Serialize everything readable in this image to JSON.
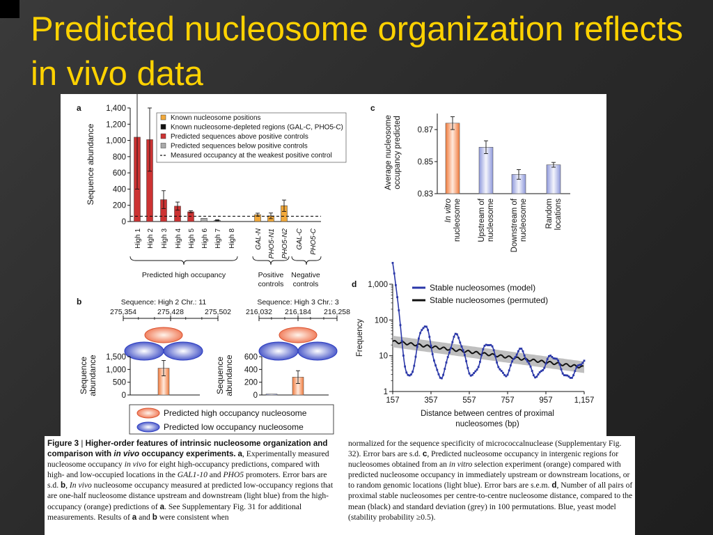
{
  "slide": {
    "title": "Predicted nucleosome organization reflects in vivo data"
  },
  "colors": {
    "title": "#ffd200",
    "red": "#cc3333",
    "orange": "#f2a93b",
    "grey": "#aaaaaa",
    "black": "#111111",
    "blue": "#2a37a8",
    "light_blue": "#c8cdee"
  },
  "panel_labels": {
    "a": "a",
    "b": "b",
    "c": "c",
    "d": "d"
  },
  "chart_data": [
    {
      "panel": "a",
      "type": "bar",
      "ylabel": "Sequence abundance",
      "ylim": [
        0,
        1400
      ],
      "yticks": [
        0,
        200,
        400,
        600,
        800,
        1000,
        1200,
        1400
      ],
      "ytick_labels": [
        "0",
        "200",
        "400",
        "600",
        "800",
        "1,000",
        "1,200",
        "1,400"
      ],
      "categories": [
        "High 1",
        "High 2",
        "High 3",
        "High 4",
        "High 5",
        "High 6",
        "High 7",
        "High 8",
        "GAL-N",
        "PHO5-N1",
        "PHO5-N2",
        "GAL-C",
        "PHO5-C"
      ],
      "values": [
        1040,
        1010,
        270,
        190,
        120,
        40,
        15,
        0,
        85,
        70,
        195,
        0,
        0
      ],
      "errors": [
        640,
        390,
        110,
        50,
        12,
        0,
        6,
        0,
        18,
        35,
        70,
        0,
        0
      ],
      "groups": [
        "red",
        "red",
        "red",
        "red",
        "red",
        "grey",
        "grey",
        "grey",
        "orange",
        "orange",
        "orange",
        "black",
        "black"
      ],
      "threshold": 65,
      "legend": [
        {
          "key": "orange",
          "label": "Known nucleosome positions"
        },
        {
          "key": "black",
          "label": "Known nucleosome-depleted regions (GAL-C, PHO5-C)"
        },
        {
          "key": "red",
          "label": "Predicted sequences above positive controls"
        },
        {
          "key": "grey",
          "label": "Predicted sequences below positive controls"
        },
        {
          "key": "dash",
          "label": "Measured occupancy at the weakest positive control"
        }
      ],
      "brackets": [
        {
          "label": "Predicted high occupancy"
        },
        {
          "label": "Positive",
          "label2": "controls"
        },
        {
          "label": "Negative",
          "label2": "controls"
        }
      ]
    },
    {
      "panel": "b",
      "type": "bar",
      "subplots": [
        {
          "title": "Sequence: High 2 Chr.: 11",
          "ruler": [
            "275,354",
            "275,428",
            "275,502"
          ],
          "ylabel": "Sequence abundance",
          "ylim": [
            0,
            1500
          ],
          "yticks": [
            0,
            500,
            1000,
            1500
          ],
          "ytick_labels": [
            "0",
            "500",
            "1,000",
            "1,500"
          ],
          "bars": [
            {
              "pos": "center",
              "value": 1050,
              "error": 300,
              "color": "orange"
            }
          ]
        },
        {
          "title": "Sequence: High 3 Chr.: 3",
          "ruler": [
            "216,032",
            "216,184",
            "216,258"
          ],
          "ylabel": "Sequence abundance",
          "ylim": [
            0,
            600
          ],
          "yticks": [
            0,
            200,
            400,
            600
          ],
          "ytick_labels": [
            "0",
            "200",
            "400",
            "600"
          ],
          "bars": [
            {
              "pos": "left",
              "value": 15,
              "error": 0,
              "color": "blue"
            },
            {
              "pos": "center",
              "value": 280,
              "error": 100,
              "color": "orange"
            }
          ]
        }
      ],
      "legend": [
        {
          "key": "orange",
          "label": "Predicted high occupancy nucleosome"
        },
        {
          "key": "blue",
          "label": "Predicted low occupancy nucleosome"
        }
      ]
    },
    {
      "panel": "c",
      "type": "bar",
      "ylabel": "Average nucleosome occupancy predicted",
      "ylim": [
        0.83,
        0.88
      ],
      "yticks": [
        0.83,
        0.85,
        0.87
      ],
      "ytick_labels": [
        "0.83",
        "0.85",
        "0.87"
      ],
      "categories": [
        {
          "line1": "In vitro",
          "line2": "nucleosome",
          "italic1": true
        },
        {
          "line1": "Upstream of",
          "line2": "nucleosome",
          "italic1": false
        },
        {
          "line1": "Downstream of",
          "line2": "nucleosome",
          "italic1": false
        },
        {
          "line1": "Random",
          "line2": "locations",
          "italic1": false
        }
      ],
      "values": [
        0.874,
        0.859,
        0.842,
        0.848
      ],
      "errors": [
        0.004,
        0.004,
        0.003,
        0.0015
      ],
      "colors": [
        "orange",
        "blue",
        "blue",
        "blue"
      ]
    },
    {
      "panel": "d",
      "type": "line",
      "yscale": "log",
      "ylabel": "Frequency",
      "xlabel": "Distance between centres of proximal nucleosomes (bp)",
      "xlim": [
        157,
        1157
      ],
      "xticks": [
        157,
        357,
        557,
        757,
        957,
        1157
      ],
      "xtick_labels": [
        "157",
        "357",
        "557",
        "757",
        "957",
        "1,157"
      ],
      "ylim": [
        1,
        1000
      ],
      "yticks": [
        1,
        10,
        100,
        1000
      ],
      "ytick_labels": [
        "1",
        "10",
        "100",
        "1,000"
      ],
      "series": [
        {
          "name": "Stable nucleosomes (model)",
          "color": "blue"
        },
        {
          "name": "Stable nucleosomes (permuted)",
          "color": "black"
        }
      ]
    }
  ],
  "caption": {
    "fig_label": "Figure 3",
    "sep": " | ",
    "heading_a": "Higher-order features of intrinsic nucleosome organization and comparison with ",
    "heading_i": "in vivo",
    "heading_b": " occupancy experiments.",
    "t1": "  ",
    "t1b": "a",
    "t2": ", Experimentally measured nucleosome occupancy ",
    "t2i": "in vivo",
    "t3": " for eight high-occupancy predictions, compared with high- and low-occupied locations in the ",
    "t3i": "GAL1-10",
    "t4": " and ",
    "t4i": "PHO5",
    "t5": " promoters. Error bars are s.d. ",
    "t5b": "b",
    "t6": ", ",
    "t6i": "In vivo",
    "t7": " nucleosome occupancy measured at predicted low-occupancy regions that are one-half nucleosome distance upstream and downstream (light blue) from the high-occupancy (orange) predictions of ",
    "t7b": "a",
    "t8": ". See Supplementary Fig. 31 for additional measurements. Results of ",
    "t8b": "a",
    "t9": " and ",
    "t9b": "b",
    "t10": " were consistent when",
    "r1": "normalized for the sequence specificity of micrococcalnuclease (Supplementary Fig. 32). Error bars are s.d. ",
    "r1b": "c",
    "r2": ", Predicted nucleosome occupancy in intergenic regions for nucleosomes obtained from an ",
    "r2i": "in vitro",
    "r3": " selection experiment (orange) compared with predicted nucleosome occupancy in immediately upstream or downstream locations, or to random genomic locations (light blue). Error bars are s.e.m. ",
    "r3b": "d",
    "r4": ", Number of all pairs of proximal stable nucleosomes per centre-to-centre nucleosome distance, compared to the mean (black) and standard deviation (grey) in 100 permutations. Blue, yeast model (stability probability ≥0.5)."
  }
}
